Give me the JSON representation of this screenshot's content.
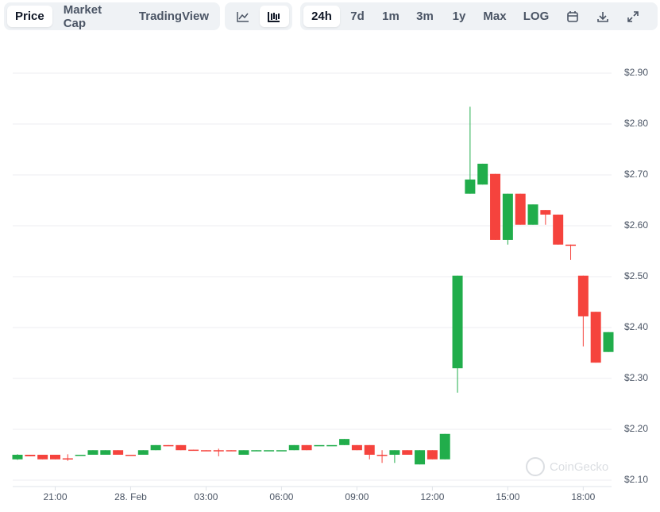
{
  "toolbar": {
    "tabs": [
      "Price",
      "Market Cap",
      "TradingView"
    ],
    "ranges": [
      "24h",
      "7d",
      "1m",
      "3m",
      "1y",
      "Max",
      "LOG"
    ]
  },
  "watermark": "CoinGecko",
  "chart_data": {
    "type": "candlestick",
    "categories": [
      null,
      null,
      null,
      "21:00",
      null,
      null,
      null,
      null,
      null,
      "28. Feb",
      null,
      null,
      null,
      null,
      null,
      "03:00",
      null,
      null,
      null,
      null,
      null,
      "06:00",
      null,
      null,
      null,
      null,
      null,
      "09:00",
      null,
      null,
      null,
      null,
      null,
      "12:00",
      null,
      null,
      null,
      null,
      null,
      "15:00",
      null,
      null,
      null,
      null,
      null,
      "18:00",
      null,
      null
    ],
    "open": [
      2.141,
      2.15,
      2.15,
      2.15,
      2.143,
      2.148,
      2.15,
      2.15,
      2.159,
      2.15,
      2.15,
      2.159,
      2.169,
      2.169,
      2.16,
      2.159,
      2.159,
      2.159,
      2.15,
      2.158,
      2.159,
      2.159,
      2.159,
      2.169,
      2.169,
      2.169,
      2.169,
      2.169,
      2.169,
      2.15,
      2.15,
      2.159,
      2.131,
      2.159,
      2.141,
      2.32,
      2.663,
      2.681,
      2.702,
      2.572,
      2.663,
      2.602,
      2.631,
      2.622,
      2.563,
      2.502,
      2.431,
      2.352
    ],
    "high": [
      2.151,
      2.15,
      2.15,
      2.15,
      2.151,
      2.15,
      2.159,
      2.159,
      2.159,
      2.15,
      2.159,
      2.169,
      2.169,
      2.169,
      2.16,
      2.159,
      2.162,
      2.159,
      2.159,
      2.159,
      2.159,
      2.159,
      2.169,
      2.169,
      2.169,
      2.169,
      2.181,
      2.169,
      2.169,
      2.159,
      2.159,
      2.159,
      2.159,
      2.159,
      2.191,
      2.502,
      2.834,
      2.722,
      2.702,
      2.663,
      2.663,
      2.642,
      2.631,
      2.622,
      2.563,
      2.502,
      2.431,
      2.391
    ],
    "low": [
      2.14,
      2.147,
      2.141,
      2.141,
      2.138,
      2.148,
      2.15,
      2.15,
      2.15,
      2.149,
      2.15,
      2.159,
      2.168,
      2.159,
      2.159,
      2.158,
      2.147,
      2.158,
      2.15,
      2.158,
      2.159,
      2.159,
      2.159,
      2.159,
      2.169,
      2.169,
      2.169,
      2.159,
      2.141,
      2.134,
      2.134,
      2.15,
      2.131,
      2.141,
      2.141,
      2.272,
      2.663,
      2.681,
      2.572,
      2.563,
      2.602,
      2.602,
      2.602,
      2.563,
      2.533,
      2.363,
      2.331,
      2.352
    ],
    "close": [
      2.15,
      2.147,
      2.141,
      2.141,
      2.141,
      2.15,
      2.159,
      2.159,
      2.15,
      2.149,
      2.159,
      2.169,
      2.168,
      2.159,
      2.159,
      2.158,
      2.158,
      2.158,
      2.159,
      2.159,
      2.159,
      2.159,
      2.169,
      2.159,
      2.169,
      2.169,
      2.181,
      2.159,
      2.15,
      2.148,
      2.159,
      2.15,
      2.159,
      2.141,
      2.191,
      2.502,
      2.691,
      2.722,
      2.572,
      2.663,
      2.602,
      2.642,
      2.622,
      2.563,
      2.561,
      2.422,
      2.331,
      2.391
    ],
    "up_color": "#21ad4b",
    "down_color": "#f5433d",
    "ylim": [
      2.085,
      2.95
    ],
    "yticks": [
      {
        "value": 2.1,
        "label": "$2.10"
      },
      {
        "value": 2.2,
        "label": "$2.20"
      },
      {
        "value": 2.3,
        "label": "$2.30"
      },
      {
        "value": 2.4,
        "label": "$2.40"
      },
      {
        "value": 2.5,
        "label": "$2.50"
      },
      {
        "value": 2.6,
        "label": "$2.60"
      },
      {
        "value": 2.7,
        "label": "$2.70"
      },
      {
        "value": 2.8,
        "label": "$2.80"
      },
      {
        "value": 2.9,
        "label": "$2.90"
      }
    ],
    "grid": true
  }
}
